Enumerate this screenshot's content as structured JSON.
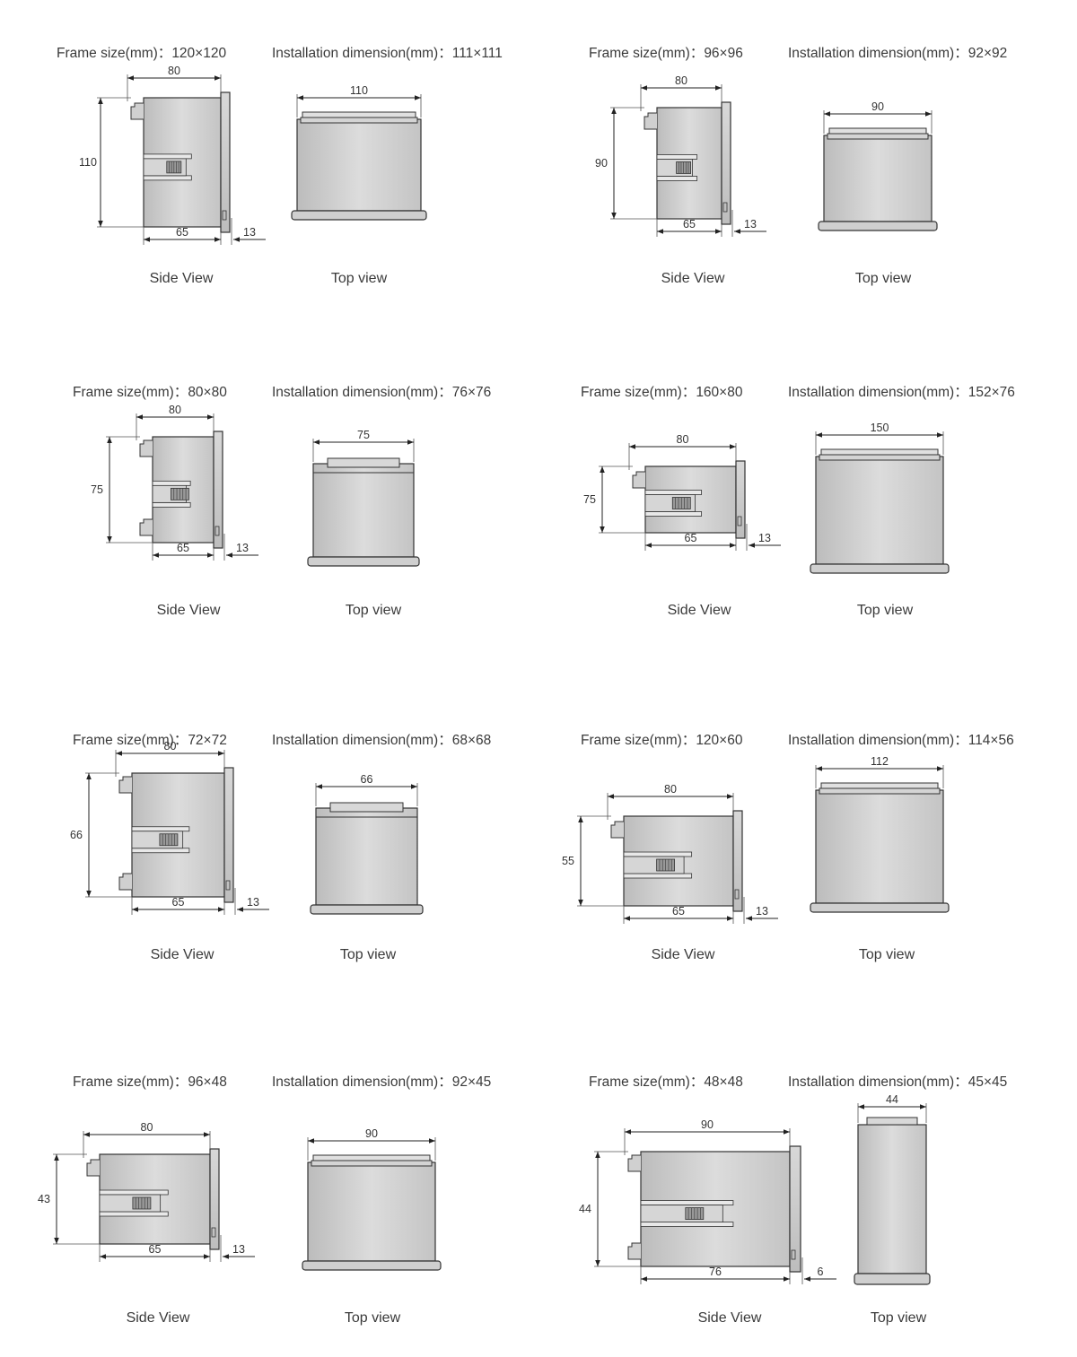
{
  "colors": {
    "body_fill": "#cfcfcf",
    "body_light": "#e4e4e4",
    "outline": "#333333",
    "dim_line": "#222222"
  },
  "labels": {
    "frame_prefix": "Frame size(mm)：",
    "install_prefix": "Installation dimension(mm)：",
    "side_view": "Side View",
    "top_view": "Top view"
  },
  "specs": [
    {
      "frame": "120×120",
      "install": "111×111",
      "side": {
        "depth": "80",
        "height": "110",
        "body": "65",
        "front": "13"
      },
      "top": {
        "width": "110"
      }
    },
    {
      "frame": "96×96",
      "install": "92×92",
      "side": {
        "depth": "80",
        "height": "90",
        "body": "65",
        "front": "13"
      },
      "top": {
        "width": "90"
      }
    },
    {
      "frame": "80×80",
      "install": "76×76",
      "side": {
        "depth": "80",
        "height": "75",
        "body": "65",
        "front": "13"
      },
      "top": {
        "width": "75"
      }
    },
    {
      "frame": "160×80",
      "install": "152×76",
      "side": {
        "depth": "80",
        "height": "75",
        "body": "65",
        "front": "13"
      },
      "top": {
        "width": "150"
      }
    },
    {
      "frame": "72×72",
      "install": "68×68",
      "side": {
        "depth": "80",
        "height": "66",
        "body": "65",
        "front": "13"
      },
      "top": {
        "width": "66"
      }
    },
    {
      "frame": "120×60",
      "install": "114×56",
      "side": {
        "depth": "80",
        "height": "55",
        "body": "65",
        "front": "13"
      },
      "top": {
        "width": "112"
      }
    },
    {
      "frame": "96×48",
      "install": "92×45",
      "side": {
        "depth": "80",
        "height": "43",
        "body": "65",
        "front": "13"
      },
      "top": {
        "width": "90"
      }
    },
    {
      "frame": "48×48",
      "install": "45×45",
      "side": {
        "depth": "90",
        "height": "44",
        "body": "76",
        "front": "6"
      },
      "top": {
        "width": "44"
      }
    }
  ]
}
